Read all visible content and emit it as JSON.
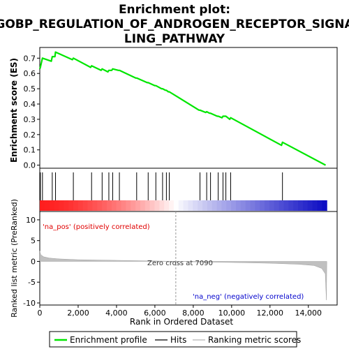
{
  "chart_data": {
    "type": "line",
    "title_line1": "Enrichment plot:",
    "title_line2": "GOBP_REGULATION_OF_ANDROGEN_RECEPTOR_SIGNA",
    "title_line3": "LING_PATHWAY",
    "es_panel": {
      "ylabel": "Enrichment score (ES)",
      "ylim": [
        -0.02,
        0.77
      ],
      "yticks": [
        0.0,
        0.1,
        0.2,
        0.3,
        0.4,
        0.5,
        0.6,
        0.7
      ],
      "ytick_labels": [
        "0.0",
        "0.1",
        "0.2",
        "0.3",
        "0.4",
        "0.5",
        "0.6",
        "0.7"
      ],
      "series_name": "Enrichment profile",
      "color": "#00e600",
      "points": [
        [
          0,
          0.63
        ],
        [
          30,
          0.64
        ],
        [
          140,
          0.7
        ],
        [
          600,
          0.68
        ],
        [
          650,
          0.71
        ],
        [
          790,
          0.71
        ],
        [
          820,
          0.74
        ],
        [
          1700,
          0.69
        ],
        [
          1750,
          0.7
        ],
        [
          2650,
          0.64
        ],
        [
          2700,
          0.65
        ],
        [
          3200,
          0.62
        ],
        [
          3250,
          0.63
        ],
        [
          3550,
          0.61
        ],
        [
          3600,
          0.62
        ],
        [
          3750,
          0.62
        ],
        [
          3800,
          0.63
        ],
        [
          4100,
          0.62
        ],
        [
          4150,
          0.62
        ],
        [
          5000,
          0.57
        ],
        [
          5050,
          0.57
        ],
        [
          5600,
          0.54
        ],
        [
          5650,
          0.54
        ],
        [
          6000,
          0.52
        ],
        [
          6050,
          0.52
        ],
        [
          6350,
          0.5
        ],
        [
          6400,
          0.5
        ],
        [
          6550,
          0.49
        ],
        [
          6600,
          0.49
        ],
        [
          6700,
          0.48
        ],
        [
          6750,
          0.48
        ],
        [
          8300,
          0.36
        ],
        [
          8350,
          0.36
        ],
        [
          8650,
          0.345
        ],
        [
          8700,
          0.35
        ],
        [
          8850,
          0.34
        ],
        [
          8900,
          0.34
        ],
        [
          9250,
          0.32
        ],
        [
          9300,
          0.32
        ],
        [
          9500,
          0.31
        ],
        [
          9550,
          0.32
        ],
        [
          9650,
          0.32
        ],
        [
          9700,
          0.32
        ],
        [
          9900,
          0.3
        ],
        [
          9950,
          0.31
        ],
        [
          12600,
          0.13
        ],
        [
          12650,
          0.15
        ],
        [
          14900,
          0.0
        ]
      ]
    },
    "hits": [
      30,
      140,
      650,
      820,
      1750,
      2700,
      3250,
      3600,
      3800,
      4150,
      5050,
      5650,
      6050,
      6400,
      6600,
      6750,
      8350,
      8700,
      8900,
      9300,
      9550,
      9700,
      9950,
      12650
    ],
    "ranked_panel": {
      "ylabel": "Ranked list metric (PreRanked)",
      "ylim": [
        -10.5,
        12
      ],
      "yticks": [
        10,
        5,
        0,
        -5,
        -10
      ],
      "ytick_labels": [
        "10",
        "5",
        "0",
        "-5",
        "-10"
      ],
      "series_name": "Ranking metric scores",
      "metric_curve": [
        [
          0,
          2.5
        ],
        [
          50,
          1.6
        ],
        [
          200,
          1.1
        ],
        [
          500,
          0.8
        ],
        [
          1000,
          0.6
        ],
        [
          2000,
          0.4
        ],
        [
          4000,
          0.25
        ],
        [
          6000,
          0.1
        ],
        [
          7090,
          0.0
        ],
        [
          8000,
          -0.1
        ],
        [
          10000,
          -0.25
        ],
        [
          12000,
          -0.45
        ],
        [
          13500,
          -0.7
        ],
        [
          14300,
          -1.0
        ],
        [
          14700,
          -1.7
        ],
        [
          14880,
          -3.0
        ],
        [
          14940,
          -9.3
        ],
        [
          14960,
          0.0
        ]
      ],
      "pos_label": "'na_pos' (positively correlated)",
      "neg_label": "'na_neg' (negatively correlated)",
      "zero_cross_label": "Zero cross at 7090",
      "zero_cross": 7090
    },
    "xlabel": "Rank in Ordered Dataset",
    "xlim": [
      0,
      15500
    ],
    "xticks": [
      0,
      2000,
      4000,
      6000,
      8000,
      10000,
      12000,
      14000
    ],
    "xtick_labels": [
      "0",
      "2,000",
      "4,000",
      "6,000",
      "8,000",
      "10,000",
      "12,000",
      "14,000"
    ],
    "n_genes": 14960,
    "legend": {
      "placement": "bottom",
      "items": [
        {
          "label": "Enrichment profile",
          "color": "#00e600"
        },
        {
          "label": "Hits",
          "color": "#000000"
        },
        {
          "label": "Ranking metric scores",
          "color": "#c0c0c0"
        }
      ]
    }
  }
}
